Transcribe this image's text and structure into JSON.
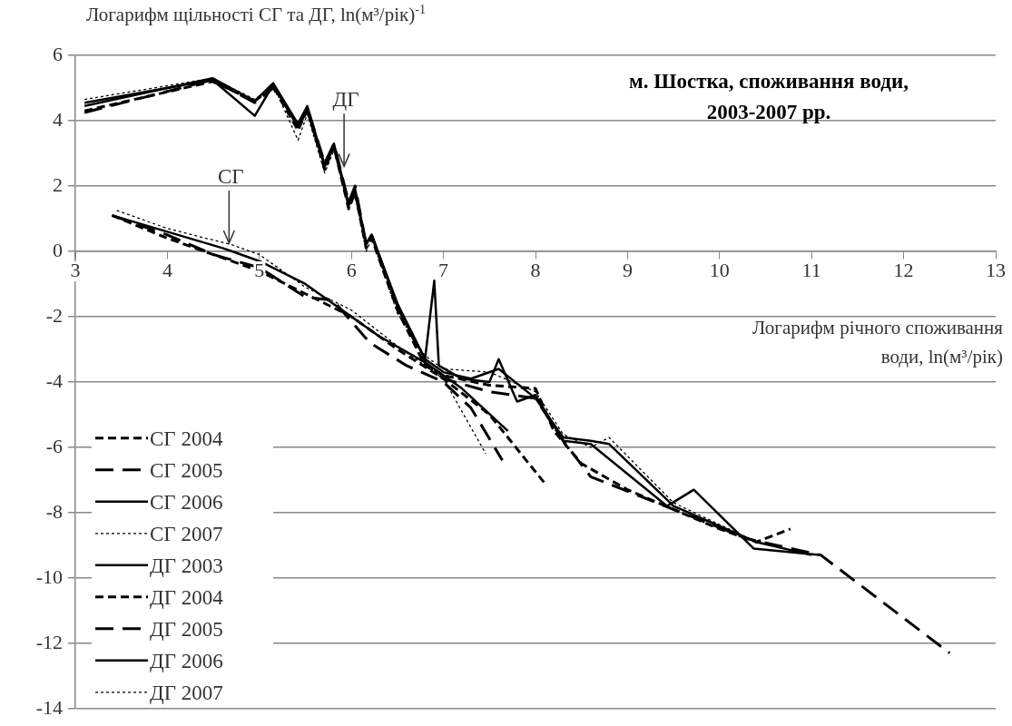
{
  "chart_data": {
    "type": "line",
    "title": "м. Шостка, споживання води, 2003-2007 рр.",
    "xlabel": "Логарифм річного споживання води, ln(м³/рік)",
    "ylabel": "Логарифм щільності СГ та ДГ, ln(м³/рік)$^{-1}$",
    "xlim": [
      3,
      13
    ],
    "ylim": [
      -14,
      6
    ],
    "xticks": [
      3,
      4,
      5,
      6,
      7,
      8,
      9,
      10,
      11,
      12,
      13
    ],
    "yticks": [
      -14,
      -12,
      -10,
      -8,
      -6,
      -4,
      -2,
      0,
      2,
      4,
      6
    ],
    "grid": "y",
    "legend": "left",
    "annotations": [
      {
        "text": "СГ",
        "x": 4.67,
        "y": 0.25
      },
      {
        "text": "ДГ",
        "x": 5.92,
        "y": 2.6
      }
    ],
    "series": [
      {
        "name": "СГ 2004",
        "color": "#000000",
        "line_style": "dashed",
        "x": [
          3.4,
          4,
          4.5,
          5,
          5.5,
          6,
          6.5,
          7,
          7.5,
          8.1
        ],
        "values": [
          1.1,
          0.4,
          -0.1,
          -0.6,
          -1.3,
          -2,
          -3,
          -3.9,
          -5,
          -7.1
        ]
      },
      {
        "name": "СГ 2005",
        "color": "#000000",
        "line_style": "longdash",
        "x": [
          3.4,
          4,
          4.5,
          5,
          5.5,
          5.8,
          6.2,
          6.6,
          7,
          7.3,
          7.64
        ],
        "values": [
          1.1,
          0.5,
          -0.1,
          -0.5,
          -1.4,
          -1.5,
          -2.8,
          -3.5,
          -4,
          -4.8,
          -6.4
        ]
      },
      {
        "name": "СГ 2006",
        "color": "#000000",
        "line_style": "solid",
        "x": [
          3.4,
          4,
          4.6,
          5,
          5.5,
          5.9,
          6.3,
          6.8,
          7.2,
          7.7
        ],
        "values": [
          1.1,
          0.6,
          0.1,
          -0.3,
          -1,
          -1.8,
          -2.6,
          -3.4,
          -4.2,
          -5.5
        ]
      },
      {
        "name": "СГ 2007",
        "color": "#000000",
        "line_style": "dotted",
        "x": [
          3.45,
          4,
          4.7,
          5,
          5.5,
          6,
          6.5,
          7,
          7.46
        ],
        "values": [
          1.25,
          0.7,
          0.2,
          -0.1,
          -1.1,
          -1.8,
          -2.9,
          -3.9,
          -6.2
        ]
      },
      {
        "name": "ДГ 2003",
        "color": "#000000",
        "line_style": "solid",
        "x": [
          3.1,
          4.49,
          4.95,
          5.15,
          5.42,
          5.52,
          5.71,
          5.81,
          5.97,
          6.04,
          6.16,
          6.22,
          6.5,
          6.8,
          7,
          7.3,
          7.6,
          8,
          8.3,
          8.6,
          8.8,
          9.5,
          10.4,
          11
        ],
        "values": [
          4.55,
          5.25,
          4.15,
          5.1,
          3.8,
          4.3,
          2.6,
          3.2,
          1.4,
          1.8,
          0.2,
          0.5,
          -1.6,
          -3.3,
          -3.7,
          -3.9,
          -3.6,
          -4.5,
          -5.7,
          -5.8,
          -5.9,
          -7.8,
          -8.9,
          -9.3
        ]
      },
      {
        "name": "ДГ 2004",
        "color": "#000000",
        "line_style": "dashed",
        "x": [
          3.1,
          4.49,
          4.95,
          5.15,
          5.42,
          5.52,
          5.71,
          5.81,
          5.97,
          6.04,
          6.16,
          6.22,
          6.5,
          6.8,
          7,
          7.5,
          8,
          8.2,
          8.5,
          9,
          9.5,
          10,
          10.4,
          10.77
        ],
        "values": [
          4.3,
          5.2,
          4.6,
          5.05,
          3.7,
          4.35,
          2.5,
          3.2,
          1.3,
          1.8,
          0.1,
          0.4,
          -1.8,
          -3.5,
          -3.8,
          -4.1,
          -4.2,
          -5.5,
          -6.5,
          -7.3,
          -7.9,
          -8.5,
          -8.9,
          -8.5
        ]
      },
      {
        "name": "ДГ 2005",
        "color": "#000000",
        "line_style": "longdash",
        "x": [
          3.1,
          4.49,
          4.95,
          5.15,
          5.42,
          5.52,
          5.71,
          5.81,
          5.97,
          6.04,
          6.16,
          6.22,
          6.5,
          6.8,
          7,
          7.5,
          8,
          8.3,
          8.6,
          9.5,
          10.3,
          11.1,
          12.5
        ],
        "values": [
          4.25,
          5.25,
          4.55,
          5,
          3.9,
          4.4,
          2.7,
          3.3,
          1.5,
          2,
          0.2,
          0.5,
          -1.7,
          -3.4,
          -3.9,
          -4.3,
          -4.5,
          -5.8,
          -6.9,
          -7.9,
          -8.8,
          -9.3,
          -12.3
        ]
      },
      {
        "name": "ДГ 2006",
        "color": "#000000",
        "line_style": "solid",
        "x": [
          3.1,
          4.49,
          4.95,
          5.15,
          5.42,
          5.52,
          5.71,
          5.81,
          5.97,
          6.04,
          6.16,
          6.22,
          6.5,
          6.8,
          6.9,
          6.95,
          7.2,
          7.5,
          7.6,
          7.8,
          8,
          8.3,
          8.6,
          9.43,
          9.72,
          10.37,
          11.11
        ],
        "values": [
          4.45,
          5.3,
          4.6,
          5.15,
          3.9,
          4.45,
          2.65,
          3.3,
          1.45,
          1.9,
          0.25,
          0.5,
          -1.7,
          -3.3,
          -0.9,
          -3.5,
          -3.9,
          -4,
          -3.3,
          -4.6,
          -4.4,
          -5.8,
          -5.9,
          -7.8,
          -7.3,
          -9.1,
          -9.3
        ]
      },
      {
        "name": "ДГ 2007",
        "color": "#000000",
        "line_style": "dotted",
        "x": [
          3.1,
          4.49,
          4.95,
          5.15,
          5.42,
          5.52,
          5.71,
          5.81,
          5.97,
          6.04,
          6.16,
          6.22,
          6.5,
          6.8,
          7,
          7.5,
          8,
          8.3,
          8.6,
          8.8,
          9.5,
          10.4,
          11
        ],
        "values": [
          4.65,
          5.3,
          4.65,
          5.1,
          3.4,
          4.2,
          2.4,
          3.1,
          1.3,
          1.7,
          0,
          0.4,
          -1.9,
          -3.2,
          -3.6,
          -3.7,
          -4.3,
          -5.6,
          -6,
          -5.7,
          -7.7,
          -8.9,
          -9.3
        ]
      }
    ]
  }
}
